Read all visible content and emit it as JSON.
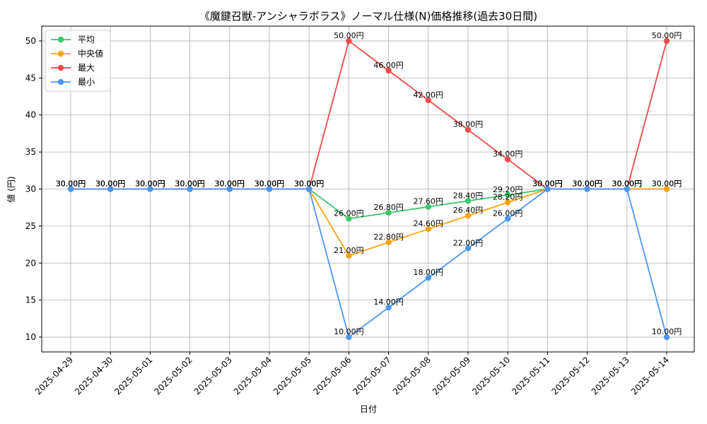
{
  "chart_data": {
    "type": "line",
    "title": "《魔鍵召獣-アンシャラボラス》ノーマル仕様(N)価格推移(過去30日間)",
    "xlabel": "日付",
    "ylabel": "値 (円)",
    "ylim": [
      8,
      52
    ],
    "yticks": [
      10,
      15,
      20,
      25,
      30,
      35,
      40,
      45,
      50
    ],
    "grid": true,
    "legend_position": "top-left",
    "categories": [
      "2025-04-29",
      "2025-04-30",
      "2025-05-01",
      "2025-05-02",
      "2025-05-03",
      "2025-05-04",
      "2025-05-05",
      "2025-05-06",
      "2025-05-07",
      "2025-05-08",
      "2025-05-09",
      "2025-05-10",
      "2025-05-11",
      "2025-05-12",
      "2025-05-13",
      "2025-05-14"
    ],
    "series": [
      {
        "name": "平均",
        "color": "#3cc76a",
        "values": [
          30,
          30,
          30,
          30,
          30,
          30,
          30,
          26,
          26.8,
          27.6,
          28.4,
          29.2,
          30,
          30,
          30,
          30
        ],
        "labels": [
          "30.00円",
          "30.00円",
          "30.00円",
          "30.00円",
          "30.00円",
          "30.00円",
          "30.00円",
          "26.00円",
          "26.80円",
          "27.60円",
          "28.40円",
          "29.20円",
          "30.00円",
          "30.00円",
          "30.00円",
          "30.00円"
        ]
      },
      {
        "name": "中央値",
        "color": "#f5a40c",
        "values": [
          30,
          30,
          30,
          30,
          30,
          30,
          30,
          21,
          22.8,
          24.6,
          26.4,
          28.2,
          30,
          30,
          30,
          30
        ],
        "labels": [
          "30.00円",
          "30.00円",
          "30.00円",
          "30.00円",
          "30.00円",
          "30.00円",
          "30.00円",
          "21.00円",
          "22.80円",
          "24.60円",
          "26.40円",
          "28.20円",
          "30.00円",
          "30.00円",
          "30.00円",
          "30.00円"
        ]
      },
      {
        "name": "最大",
        "color": "#ef4a4a",
        "values": [
          30,
          30,
          30,
          30,
          30,
          30,
          30,
          50,
          46,
          42,
          38,
          34,
          30,
          30,
          30,
          50
        ],
        "labels": [
          "30.00円",
          "30.00円",
          "30.00円",
          "30.00円",
          "30.00円",
          "30.00円",
          "30.00円",
          "50.00円",
          "46.00円",
          "42.00円",
          "38.00円",
          "34.00円",
          "30.00円",
          "30.00円",
          "30.00円",
          "50.00円"
        ]
      },
      {
        "name": "最小",
        "color": "#4a97f0",
        "values": [
          30,
          30,
          30,
          30,
          30,
          30,
          30,
          10,
          14,
          18,
          22,
          26,
          30,
          30,
          30,
          10
        ],
        "labels": [
          "30.00円",
          "30.00円",
          "30.00円",
          "30.00円",
          "30.00円",
          "30.00円",
          "30.00円",
          "10.00円",
          "14.00円",
          "18.00円",
          "22.00円",
          "26.00円",
          "30.00円",
          "30.00円",
          "30.00円",
          "10.00円"
        ]
      }
    ]
  }
}
